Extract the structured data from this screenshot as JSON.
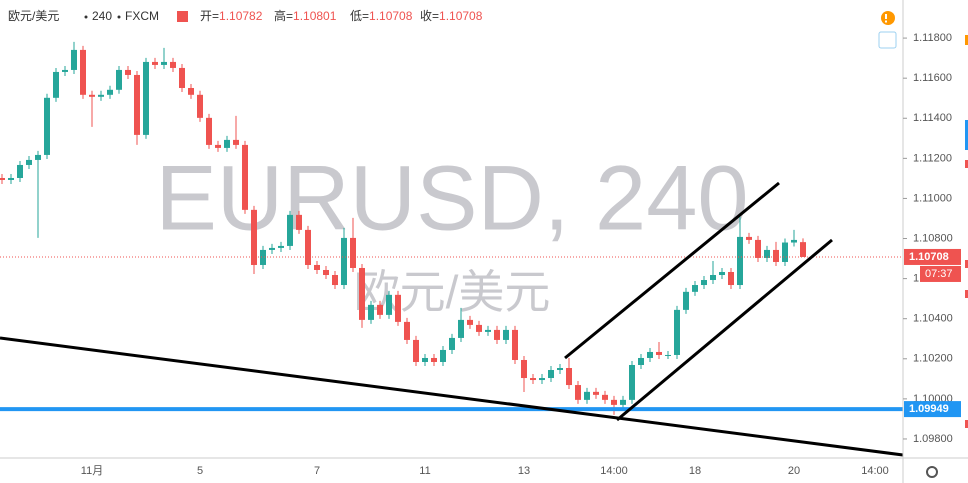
{
  "chart_data": {
    "type": "candlestick",
    "title": "欧元/美元",
    "interval": "240",
    "source": "FXCM",
    "ohlc_legend": [
      {
        "label": "开=",
        "value": 1.10782
      },
      {
        "label": "高=",
        "value": 1.10801
      },
      {
        "label": "低=",
        "value": 1.10708
      },
      {
        "label": "收=",
        "value": 1.10708
      }
    ],
    "watermark": "EURUSD, 240",
    "watermark_subtitle": "欧元/美元",
    "countdown": "07:37",
    "up_color": "#26a69a",
    "down_color": "#ef5350",
    "hline": {
      "value": 1.09949,
      "color": "#2196f3"
    },
    "categories": [
      null,
      null,
      null,
      null,
      null,
      null,
      null,
      null,
      null,
      null,
      "11月",
      null,
      null,
      null,
      null,
      null,
      null,
      null,
      null,
      null,
      null,
      null,
      "5",
      null,
      null,
      null,
      null,
      null,
      null,
      null,
      null,
      null,
      null,
      null,
      null,
      "7",
      null,
      null,
      null,
      null,
      null,
      null,
      null,
      null,
      null,
      null,
      null,
      "11",
      null,
      null,
      null,
      null,
      null,
      null,
      null,
      null,
      null,
      null,
      "13",
      null,
      null,
      null,
      null,
      null,
      null,
      null,
      null,
      null,
      "14:00",
      null,
      null,
      null,
      null,
      null,
      null,
      null,
      null,
      "18",
      null,
      null,
      null,
      null,
      null,
      null,
      null,
      null,
      null,
      null,
      "20",
      null,
      null,
      null,
      null,
      null,
      null,
      null,
      null,
      "14:00"
    ],
    "open": [
      1.11102,
      1.11092,
      1.11102,
      1.11167,
      1.11192,
      1.11217,
      1.11502,
      1.11631,
      1.11641,
      1.11741,
      1.11517,
      1.11507,
      1.11517,
      1.11542,
      1.11641,
      1.11616,
      1.11317,
      1.11681,
      1.11666,
      1.11681,
      1.11651,
      1.11551,
      1.11517,
      1.11402,
      1.11267,
      1.11252,
      1.11292,
      1.11267,
      1.10943,
      1.10668,
      1.10743,
      1.10753,
      1.10763,
      1.10918,
      1.10843,
      1.10668,
      1.10643,
      1.10618,
      1.10568,
      1.10803,
      1.10653,
      1.10394,
      1.10469,
      1.10419,
      1.10519,
      1.10384,
      1.10294,
      1.10184,
      1.10204,
      1.10184,
      1.10244,
      1.10304,
      1.10394,
      1.10369,
      1.10334,
      1.10344,
      1.10294,
      1.10344,
      1.10194,
      1.10104,
      1.10094,
      1.10104,
      1.10144,
      1.10154,
      1.10069,
      1.09995,
      1.10035,
      1.1002,
      1.09995,
      1.0997,
      1.09995,
      1.10169,
      1.10204,
      1.10234,
      1.10219,
      1.10219,
      1.10444,
      1.10534,
      1.10568,
      1.10593,
      1.10618,
      1.10633,
      1.10568,
      1.10808,
      1.10793,
      1.10703,
      1.10743,
      1.10683,
      1.1078,
      1.10782,
      null,
      null,
      null,
      null,
      null,
      null,
      null,
      null
    ],
    "high": [
      1.11122,
      1.11122,
      1.11187,
      1.11212,
      1.11237,
      1.11522,
      1.11651,
      1.11661,
      1.11781,
      1.11761,
      1.11537,
      1.11537,
      1.11562,
      1.11661,
      1.11661,
      1.11636,
      1.11701,
      1.11701,
      1.11751,
      1.11701,
      1.11671,
      1.11571,
      1.11537,
      1.11422,
      1.11287,
      1.11312,
      1.11412,
      1.11287,
      1.10963,
      1.10763,
      1.10773,
      1.10783,
      1.10938,
      1.10938,
      1.10863,
      1.10688,
      1.10663,
      1.10638,
      1.10853,
      1.10903,
      1.10673,
      1.10489,
      1.10489,
      1.10539,
      1.10539,
      1.10404,
      1.10314,
      1.10224,
      1.10224,
      1.10264,
      1.10324,
      1.10454,
      1.10414,
      1.10389,
      1.10364,
      1.10364,
      1.10364,
      1.10364,
      1.10214,
      1.10124,
      1.10124,
      1.10164,
      1.10174,
      1.10204,
      1.10089,
      1.10055,
      1.10055,
      1.1004,
      1.10015,
      1.10015,
      1.10189,
      1.10224,
      1.10254,
      1.10284,
      1.10239,
      1.10464,
      1.10554,
      1.10588,
      1.10613,
      1.10688,
      1.10653,
      1.10653,
      1.10908,
      1.10828,
      1.10813,
      1.10763,
      1.10783,
      1.108,
      1.10843,
      1.10801,
      null,
      null,
      null,
      null,
      null,
      null,
      null,
      null
    ],
    "low": [
      1.11072,
      1.11072,
      1.11082,
      1.11147,
      1.10803,
      1.11197,
      1.11482,
      1.11611,
      1.11621,
      1.11497,
      1.11357,
      1.11487,
      1.11497,
      1.11522,
      1.11596,
      1.11267,
      1.11297,
      1.11646,
      1.11646,
      1.11631,
      1.11531,
      1.11497,
      1.11382,
      1.11247,
      1.11232,
      1.11232,
      1.11247,
      1.10923,
      1.10623,
      1.10648,
      1.10723,
      1.10733,
      1.10743,
      1.10823,
      1.10648,
      1.10623,
      1.10598,
      1.10548,
      1.10548,
      1.10633,
      1.10354,
      1.10374,
      1.10399,
      1.10399,
      1.10364,
      1.10274,
      1.10164,
      1.10164,
      1.10164,
      1.10164,
      1.10224,
      1.10284,
      1.10349,
      1.10314,
      1.10314,
      1.10274,
      1.10274,
      1.10174,
      1.10034,
      1.10074,
      1.10074,
      1.10084,
      1.10124,
      1.10049,
      1.09975,
      1.09975,
      1.1,
      1.09975,
      1.0992,
      1.0995,
      1.09975,
      1.10149,
      1.10184,
      1.10199,
      1.10199,
      1.10199,
      1.10424,
      1.10514,
      1.10548,
      1.10573,
      1.10598,
      1.10548,
      1.10548,
      1.10773,
      1.10683,
      1.10683,
      1.10663,
      1.10663,
      1.1076,
      1.10708,
      null,
      null,
      null,
      null,
      null,
      null,
      null,
      null
    ],
    "close": [
      1.11092,
      1.11102,
      1.11167,
      1.11192,
      1.11217,
      1.11502,
      1.11631,
      1.11641,
      1.11741,
      1.11517,
      1.11507,
      1.11517,
      1.11542,
      1.11641,
      1.11616,
      1.11317,
      1.11681,
      1.11666,
      1.11681,
      1.11651,
      1.11551,
      1.11517,
      1.11402,
      1.11267,
      1.11252,
      1.11292,
      1.11267,
      1.10943,
      1.10668,
      1.10743,
      1.10753,
      1.10763,
      1.10918,
      1.10843,
      1.10668,
      1.10643,
      1.10618,
      1.10568,
      1.10803,
      1.10653,
      1.10394,
      1.10469,
      1.10419,
      1.10519,
      1.10384,
      1.10294,
      1.10184,
      1.10204,
      1.10184,
      1.10244,
      1.10304,
      1.10394,
      1.10369,
      1.10334,
      1.10344,
      1.10294,
      1.10344,
      1.10194,
      1.10104,
      1.10094,
      1.10104,
      1.10144,
      1.10154,
      1.10069,
      1.09995,
      1.10035,
      1.1002,
      1.09995,
      1.0997,
      1.09995,
      1.10169,
      1.10204,
      1.10234,
      1.10219,
      1.10219,
      1.10444,
      1.10534,
      1.10568,
      1.10593,
      1.10618,
      1.10633,
      1.10568,
      1.10808,
      1.10793,
      1.10703,
      1.10743,
      1.10683,
      1.1078,
      1.10793,
      1.10708,
      null,
      null,
      null,
      null,
      null,
      null,
      null,
      null
    ],
    "ylim": [
      1.09705,
      1.1199
    ],
    "yticks": [
      {
        "value": 1.098,
        "label": "1.09800"
      },
      {
        "value": 1.1,
        "label": "1.10000"
      },
      {
        "value": 1.102,
        "label": "1.10200"
      },
      {
        "value": 1.104,
        "label": "1.10400"
      },
      {
        "value": 1.106,
        "label": "1.10600"
      },
      {
        "value": 1.108,
        "label": "1.10800"
      },
      {
        "value": 1.11,
        "label": "1.11000"
      },
      {
        "value": 1.112,
        "label": "1.11200"
      },
      {
        "value": 1.114,
        "label": "1.11400"
      },
      {
        "value": 1.116,
        "label": "1.11600"
      },
      {
        "value": 1.118,
        "label": "1.11800"
      }
    ],
    "grid": false
  }
}
